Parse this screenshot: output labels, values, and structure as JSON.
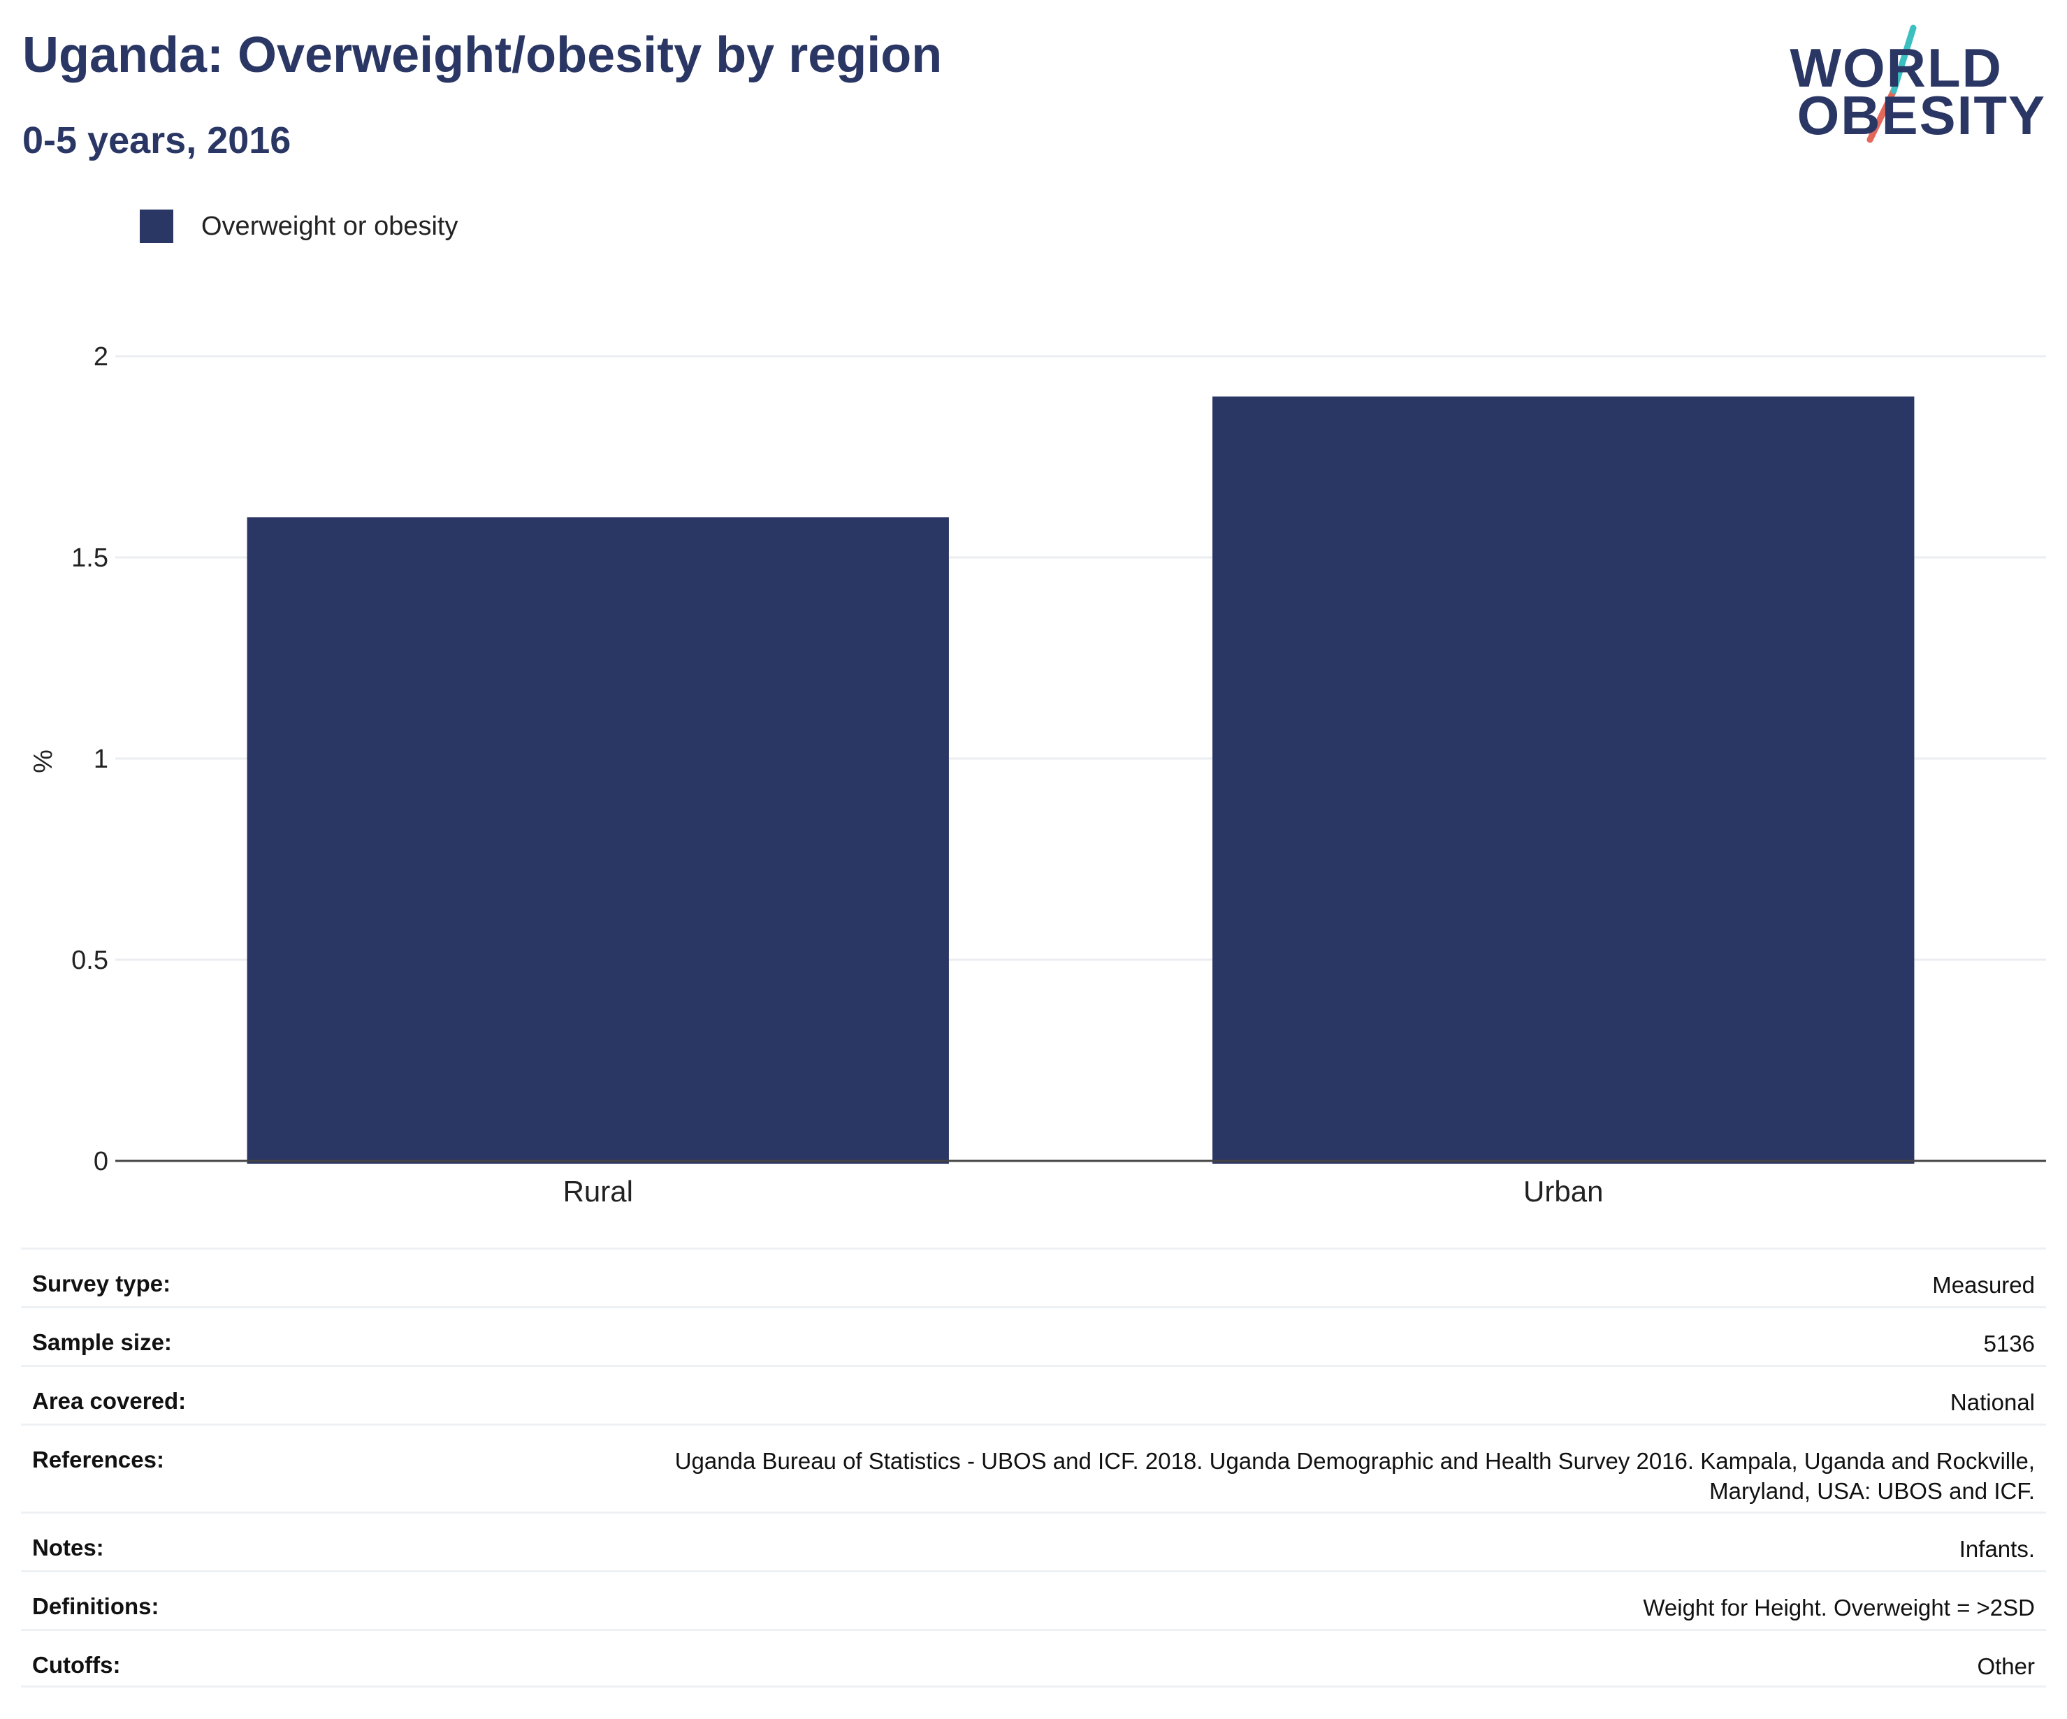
{
  "header": {
    "title": "Uganda: Overweight/obesity by region",
    "subtitle": "0-5 years, 2016"
  },
  "logo": {
    "line1": "WORLD",
    "line2": "OBESITY",
    "accent_teal": "#3bbfc1",
    "accent_red": "#e4685a"
  },
  "colors": {
    "bar": "#2a3663",
    "title": "#2a3663"
  },
  "chart_data": {
    "type": "bar",
    "categories": [
      "Rural",
      "Urban"
    ],
    "series": [
      {
        "name": "Overweight or obesity",
        "values": [
          1.6,
          1.9
        ]
      }
    ],
    "ylabel": "%",
    "xlabel": "",
    "ylim": [
      0,
      2
    ],
    "yticks": [
      "0",
      "0.5",
      "1",
      "1.5",
      "2"
    ],
    "grid": true,
    "legend_position": "top-left"
  },
  "details": [
    {
      "key": "Survey type:",
      "value": "Measured"
    },
    {
      "key": "Sample size:",
      "value": "5136"
    },
    {
      "key": "Area covered:",
      "value": "National"
    },
    {
      "key": "References:",
      "value": "Uganda Bureau of Statistics - UBOS and ICF. 2018. Uganda Demographic and Health Survey 2016. Kampala, Uganda and Rockville, Maryland, USA: UBOS and ICF."
    },
    {
      "key": "Notes:",
      "value": "Infants."
    },
    {
      "key": "Definitions:",
      "value": "Weight for Height. Overweight = >2SD"
    },
    {
      "key": "Cutoffs:",
      "value": "Other"
    }
  ]
}
